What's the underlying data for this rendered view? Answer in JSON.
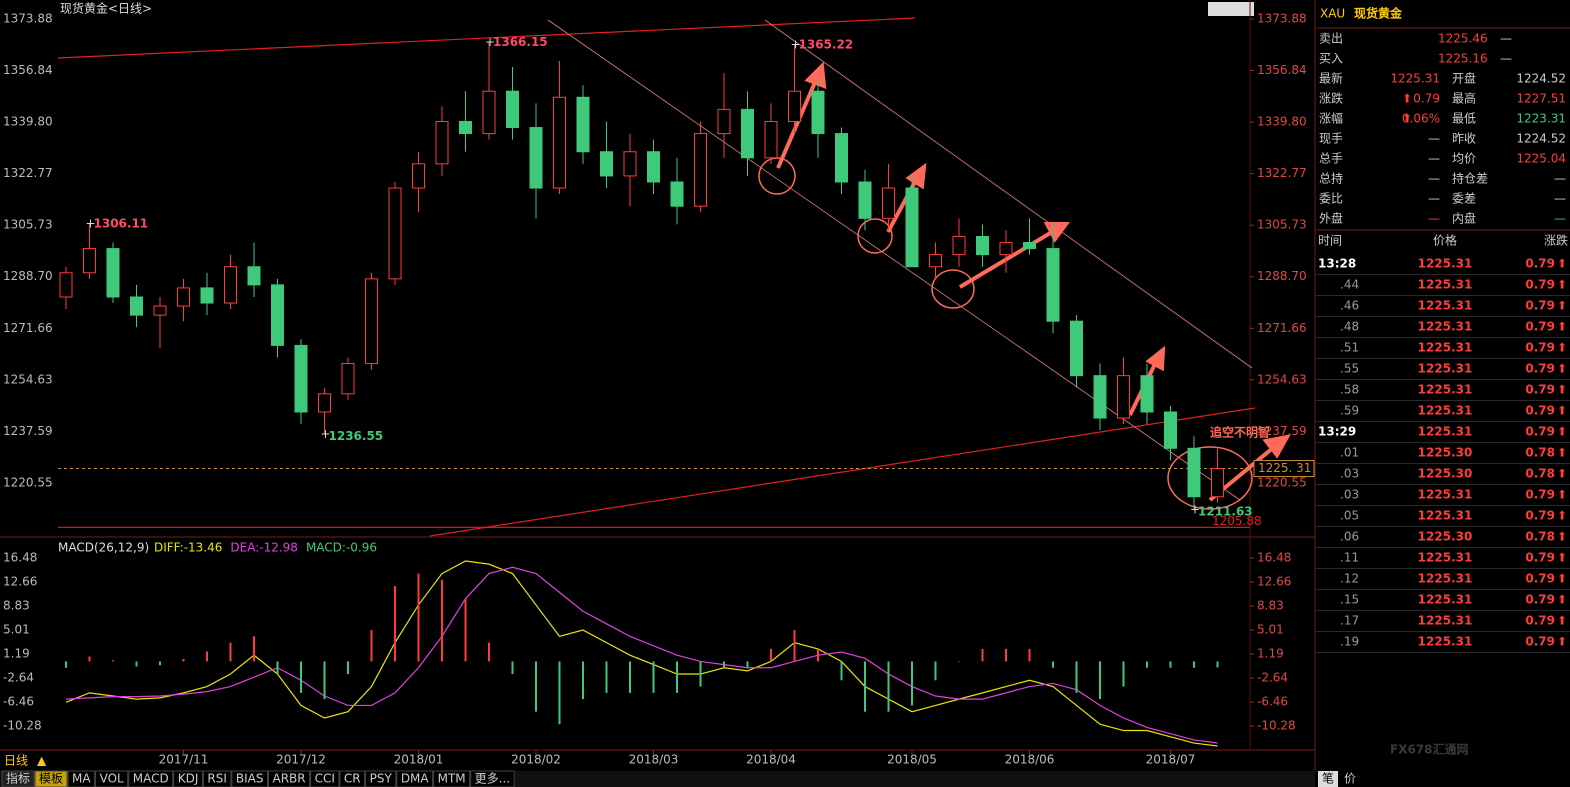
{
  "chart_data": [
    {
      "type": "candlestick",
      "title": "现货黄金<日线>",
      "categories": [
        null,
        null,
        null,
        null,
        null,
        "2017/11",
        null,
        null,
        null,
        null,
        "2017/12",
        null,
        null,
        null,
        null,
        "2018/01",
        null,
        null,
        null,
        null,
        "2018/02",
        null,
        null,
        null,
        null,
        "2018/03",
        null,
        null,
        null,
        null,
        "2018/04",
        null,
        null,
        null,
        null,
        null,
        "2018/05",
        null,
        null,
        null,
        null,
        "2018/06",
        null,
        null,
        null,
        null,
        null,
        "2018/07",
        null,
        null
      ],
      "values": [
        [
          1282,
          1292,
          1278,
          1290
        ],
        [
          1290,
          1306.11,
          1288,
          1298
        ],
        [
          1298,
          1300,
          1280,
          1282
        ],
        [
          1282,
          1286,
          1272,
          1276
        ],
        [
          1276,
          1282,
          1265,
          1279
        ],
        [
          1279,
          1288,
          1274,
          1285
        ],
        [
          1285,
          1290,
          1276,
          1280
        ],
        [
          1280,
          1296,
          1278,
          1292
        ],
        [
          1292,
          1300,
          1282,
          1286
        ],
        [
          1286,
          1288,
          1262,
          1266
        ],
        [
          1266,
          1268,
          1240,
          1244
        ],
        [
          1244,
          1252,
          1236.55,
          1250
        ],
        [
          1250,
          1262,
          1248,
          1260
        ],
        [
          1260,
          1290,
          1258,
          1288
        ],
        [
          1288,
          1320,
          1286,
          1318
        ],
        [
          1318,
          1330,
          1310,
          1326
        ],
        [
          1326,
          1345,
          1322,
          1340
        ],
        [
          1340,
          1350,
          1330,
          1336
        ],
        [
          1336,
          1366.15,
          1334,
          1350
        ],
        [
          1350,
          1358,
          1334,
          1338
        ],
        [
          1338,
          1346,
          1308,
          1318
        ],
        [
          1318,
          1360,
          1316,
          1348
        ],
        [
          1348,
          1352,
          1326,
          1330
        ],
        [
          1330,
          1340,
          1318,
          1322
        ],
        [
          1322,
          1336,
          1312,
          1330
        ],
        [
          1330,
          1334,
          1316,
          1320
        ],
        [
          1320,
          1328,
          1306,
          1312
        ],
        [
          1312,
          1340,
          1310,
          1336
        ],
        [
          1336,
          1356,
          1328,
          1344
        ],
        [
          1344,
          1350,
          1322,
          1328
        ],
        [
          1328,
          1346,
          1326,
          1340
        ],
        [
          1340,
          1365.22,
          1336,
          1350
        ],
        [
          1350,
          1354,
          1328,
          1336
        ],
        [
          1336,
          1338,
          1316,
          1320
        ],
        [
          1320,
          1324,
          1304,
          1308
        ],
        [
          1308,
          1326,
          1304,
          1318
        ],
        [
          1318,
          1322,
          1292,
          1292
        ],
        [
          1292,
          1300,
          1288,
          1296
        ],
        [
          1296,
          1308,
          1292,
          1302
        ],
        [
          1302,
          1306,
          1292,
          1296
        ],
        [
          1296,
          1304,
          1290,
          1300
        ],
        [
          1300,
          1308,
          1296,
          1298
        ],
        [
          1298,
          1306,
          1270,
          1274
        ],
        [
          1274,
          1276,
          1252,
          1256
        ],
        [
          1256,
          1260,
          1238,
          1242
        ],
        [
          1242,
          1262,
          1240,
          1256
        ],
        [
          1256,
          1260,
          1240,
          1244
        ],
        [
          1244,
          1246,
          1228,
          1232
        ],
        [
          1232,
          1236,
          1211.63,
          1216
        ],
        [
          1216,
          1232,
          1214,
          1225.31
        ]
      ],
      "up_color": "#ff3c3c",
      "down_color": "#3fc97a",
      "ylim": [
        1205,
        1377.5
      ],
      "yticks": [
        1373.88,
        1356.84,
        {
          "value": 1339.8,
          "label": "1339.80"
        },
        1322.77,
        1305.73,
        {
          "value": 1288.7,
          "label": "1288.70"
        },
        1271.66,
        1254.63,
        1237.59,
        1220.55
      ],
      "extremes": [
        [
          1,
          1
        ],
        [
          11,
          2
        ],
        [
          18,
          1
        ],
        [
          31,
          1
        ],
        [
          48,
          2
        ]
      ],
      "price_line": {
        "value": 1225.31,
        "label": "1225. 31"
      },
      "floor_line": 1205.88,
      "annotation": "追空不明智"
    },
    {
      "type": "macd",
      "title": "MACD(26,12,9)",
      "ylim": [
        -14.1,
        18.07
      ],
      "yticks": [
        16.48,
        12.66,
        8.83,
        5.01,
        1.19,
        -2.64,
        -6.46,
        -10.28
      ],
      "series": [
        {
          "name": "DIFF",
          "legend_label": "DIFF:-13.46",
          "color": "#e6e600",
          "values": [
            -6.5,
            -5,
            -5.5,
            -6,
            -5.8,
            -5,
            -4,
            -2,
            1,
            -2,
            -7,
            -9,
            -8,
            -4,
            3,
            9,
            14,
            16,
            15.5,
            14,
            9,
            4,
            5,
            3,
            1,
            -0.5,
            -2,
            -2,
            -1,
            -1.5,
            0,
            3,
            2,
            0,
            -4,
            -6,
            -8,
            -7,
            -6,
            -5,
            -4,
            -3,
            -4,
            -7,
            -10,
            -11,
            -11,
            -12,
            -13,
            -13.46
          ]
        },
        {
          "name": "DEA",
          "legend_label": "DEA:-12.98",
          "color": "#e040e0",
          "values": [
            -6,
            -5.8,
            -5.6,
            -5.6,
            -5.5,
            -5.2,
            -4.8,
            -4,
            -2.5,
            -1,
            -3,
            -5.5,
            -7,
            -7,
            -5,
            -1,
            4,
            10,
            14,
            15,
            14,
            11,
            8,
            6,
            4,
            2.5,
            1,
            0,
            -0.5,
            -1,
            -1,
            0,
            1,
            1.5,
            0.5,
            -2,
            -4,
            -5.5,
            -6,
            -6,
            -5,
            -4,
            -3.5,
            -4.5,
            -7,
            -9,
            -10.5,
            -11.5,
            -12.5,
            -12.98
          ]
        },
        {
          "name": "MACD",
          "legend_label": "MACD:-0.96",
          "color": "#3fc97a",
          "up_color": "#ff3c3c",
          "values": [
            -1,
            0.8,
            0.2,
            -0.8,
            -0.6,
            0.4,
            1.6,
            3,
            4,
            -2,
            -5,
            -6,
            -2,
            5,
            12,
            14,
            13,
            10,
            3,
            -2,
            -8,
            -10,
            -6,
            -5,
            -5,
            -5,
            -5,
            -4,
            -1,
            -1,
            2,
            5,
            2,
            -3,
            -8,
            -8,
            -7,
            -3,
            0,
            2,
            2,
            2,
            -1,
            -5,
            -6,
            -4,
            -1,
            -1,
            -1,
            -0.96
          ]
        }
      ]
    }
  ],
  "quote_panel": {
    "symbol": "XAU",
    "name": "现货黄金",
    "rows": [
      [
        "卖出",
        "1225.46",
        "—"
      ],
      [
        "买入",
        "1225.16",
        "—"
      ],
      [
        "最新",
        "1225.31",
        "开盘",
        "1224.52"
      ],
      [
        "涨跌",
        "0.79",
        "最高",
        "1227.51"
      ],
      [
        "涨幅",
        "0.06%",
        "最低",
        "1223.31"
      ],
      [
        "现手",
        "—",
        "昨收",
        "1224.52"
      ],
      [
        "总手",
        "—",
        "均价",
        "1225.04"
      ],
      [
        "总持",
        "—",
        "持仓差",
        "—"
      ],
      [
        "委比",
        "—",
        "委差",
        "—"
      ],
      [
        "外盘",
        "—",
        "内盘",
        "—"
      ]
    ],
    "ticks_header": [
      "时间",
      "价格",
      "涨跌"
    ],
    "ticks": [
      [
        "13:28",
        "1225.31",
        "0.79"
      ],
      [
        ".44",
        "1225.31",
        "0.79"
      ],
      [
        ".46",
        "1225.31",
        "0.79"
      ],
      [
        ".48",
        "1225.31",
        "0.79"
      ],
      [
        ".51",
        "1225.31",
        "0.79"
      ],
      [
        ".55",
        "1225.31",
        "0.79"
      ],
      [
        ".58",
        "1225.31",
        "0.79"
      ],
      [
        ".59",
        "1225.31",
        "0.79"
      ],
      [
        "13:29",
        "1225.31",
        "0.79"
      ],
      [
        ".01",
        "1225.30",
        "0.78"
      ],
      [
        ".03",
        "1225.30",
        "0.78"
      ],
      [
        ".03",
        "1225.31",
        "0.79"
      ],
      [
        ".05",
        "1225.31",
        "0.79"
      ],
      [
        ".06",
        "1225.30",
        "0.78"
      ],
      [
        ".11",
        "1225.31",
        "0.79"
      ],
      [
        ".12",
        "1225.31",
        "0.79"
      ],
      [
        ".15",
        "1225.31",
        "0.79"
      ],
      [
        ".17",
        "1225.31",
        "0.79"
      ],
      [
        ".19",
        "1225.31",
        "0.79"
      ]
    ],
    "tabs": [
      "笔",
      "价"
    ]
  },
  "toolbar": {
    "period": "日线",
    "tabs": [
      "指标",
      "模板",
      "MA",
      "VOL",
      "MACD",
      "KDJ",
      "RSI",
      "BIAS",
      "ARBR",
      "CCI",
      "CR",
      "PSY",
      "DMA",
      "MTM",
      "更多..."
    ]
  },
  "watermark": "FX678汇通网"
}
